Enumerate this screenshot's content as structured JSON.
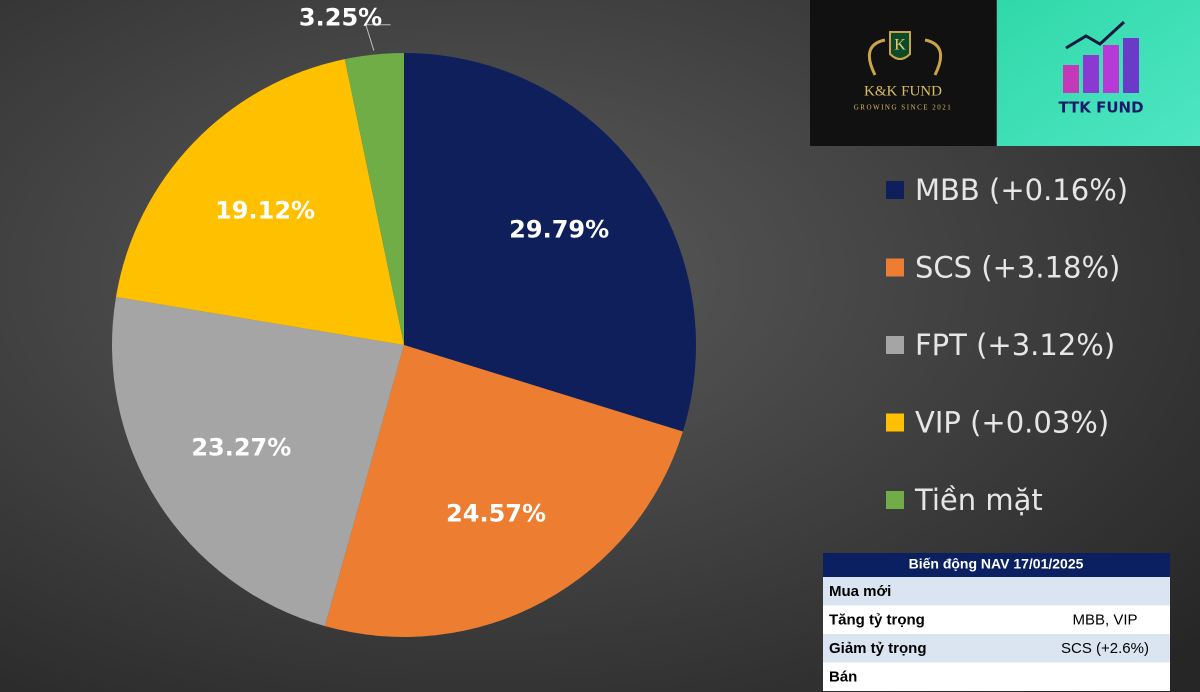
{
  "chart_data": {
    "type": "pie",
    "categories": [
      "MBB (+0.16%)",
      "SCS (+3.18%)",
      "FPT (+3.12%)",
      "VIP (+0.03%)",
      "Tiền mặt"
    ],
    "values": [
      29.79,
      24.57,
      23.27,
      19.12,
      3.25
    ],
    "value_labels": [
      "29.79%",
      "24.57%",
      "23.27%",
      "19.12%",
      "3.25%"
    ],
    "colors": [
      "#0f1f5c",
      "#ed7d31",
      "#a5a5a5",
      "#ffc000",
      "#70ad47"
    ],
    "legend": "right"
  },
  "logos": {
    "kk": {
      "initial": "K",
      "name": "K&K FUND",
      "tagline": "GROWING SINCE 2021"
    },
    "ttk": {
      "name": "TTK FUND"
    }
  },
  "table": {
    "title": "Biến động NAV 17/01/2025",
    "rows": [
      [
        "Mua mới"
      ],
      [
        "Tăng tỷ trọng",
        "MBB, VIP"
      ],
      [
        "Giảm tỷ trọng",
        "SCS (+2.6%)"
      ],
      [
        "Bán"
      ]
    ]
  }
}
